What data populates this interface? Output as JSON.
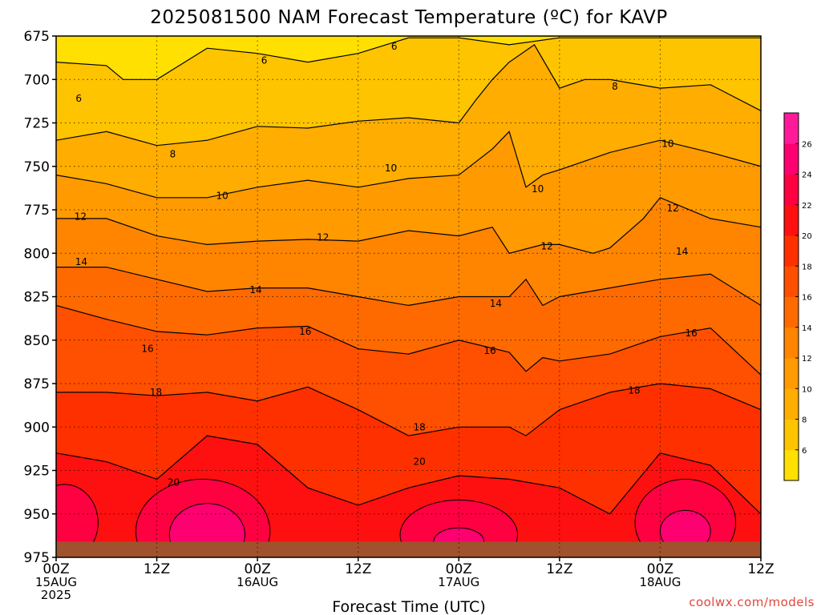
{
  "chart_data": {
    "type": "heatmap",
    "title": "2025081500 NAM Forecast Temperature (ºC) for KAVP",
    "xlabel": "Forecast Time (UTC)",
    "ylabel": "",
    "y_axis": {
      "unit": "hPa",
      "range": [
        975,
        675
      ],
      "inverted": true,
      "ticks": [
        675,
        700,
        725,
        750,
        775,
        800,
        825,
        850,
        875,
        900,
        925,
        950,
        975
      ],
      "tick_labels": [
        "675",
        "700",
        "725",
        "750",
        "775",
        "800",
        "825",
        "850",
        "875",
        "900",
        "925",
        "950",
        "975"
      ]
    },
    "x_axis": {
      "unit": "hours since 2025-08-15 00Z",
      "range": [
        0,
        84
      ],
      "ticks": [
        {
          "h": 0,
          "line1": "00Z",
          "line2": "15AUG",
          "line3": "2025"
        },
        {
          "h": 12,
          "line1": "12Z",
          "line2": "",
          "line3": ""
        },
        {
          "h": 24,
          "line1": "00Z",
          "line2": "16AUG",
          "line3": ""
        },
        {
          "h": 36,
          "line1": "12Z",
          "line2": "",
          "line3": ""
        },
        {
          "h": 48,
          "line1": "00Z",
          "line2": "17AUG",
          "line3": ""
        },
        {
          "h": 60,
          "line1": "12Z",
          "line2": "",
          "line3": ""
        },
        {
          "h": 72,
          "line1": "00Z",
          "line2": "18AUG",
          "line3": ""
        },
        {
          "h": 84,
          "line1": "12Z",
          "line2": "",
          "line3": ""
        }
      ]
    },
    "grid": true,
    "colorbar": {
      "position": "right",
      "levels": [
        4,
        6,
        8,
        10,
        12,
        14,
        16,
        18,
        20,
        22,
        24,
        26,
        28
      ],
      "tick_labels": [
        "6",
        "8",
        "10",
        "12",
        "14",
        "16",
        "18",
        "20",
        "22",
        "24",
        "26"
      ],
      "colors": [
        "#ffe000",
        "#ffc400",
        "#ffad00",
        "#ff9a00",
        "#ff8500",
        "#ff6a00",
        "#ff4f00",
        "#ff3000",
        "#ff1010",
        "#ff0040",
        "#ff0070",
        "#ff1a9a"
      ]
    },
    "contours": [
      {
        "value": 6,
        "p_at": [
          [
            0,
            690
          ],
          [
            6,
            692
          ],
          [
            8,
            700
          ],
          [
            12,
            700
          ],
          [
            18,
            682
          ],
          [
            24,
            685
          ],
          [
            30,
            690
          ],
          [
            36,
            685
          ],
          [
            42,
            676
          ],
          [
            48,
            676
          ],
          [
            54,
            680
          ],
          [
            60,
            676
          ],
          [
            66,
            676
          ],
          [
            72,
            676
          ],
          [
            78,
            676
          ],
          [
            84,
            676
          ]
        ]
      },
      {
        "value": 8,
        "p_at": [
          [
            0,
            735
          ],
          [
            6,
            730
          ],
          [
            12,
            738
          ],
          [
            18,
            735
          ],
          [
            24,
            727
          ],
          [
            30,
            728
          ],
          [
            36,
            724
          ],
          [
            42,
            722
          ],
          [
            48,
            725
          ],
          [
            50,
            712
          ],
          [
            52,
            700
          ],
          [
            54,
            690
          ],
          [
            57,
            680
          ],
          [
            60,
            705
          ],
          [
            63,
            700
          ],
          [
            66,
            700
          ],
          [
            72,
            705
          ],
          [
            78,
            703
          ],
          [
            84,
            718
          ]
        ]
      },
      {
        "value": 10,
        "p_at": [
          [
            0,
            755
          ],
          [
            6,
            760
          ],
          [
            12,
            768
          ],
          [
            18,
            768
          ],
          [
            24,
            762
          ],
          [
            30,
            758
          ],
          [
            36,
            762
          ],
          [
            42,
            757
          ],
          [
            48,
            755
          ],
          [
            52,
            740
          ],
          [
            54,
            730
          ],
          [
            56,
            762
          ],
          [
            58,
            755
          ],
          [
            60,
            752
          ],
          [
            66,
            742
          ],
          [
            72,
            735
          ],
          [
            78,
            742
          ],
          [
            84,
            750
          ]
        ]
      },
      {
        "value": 12,
        "p_at": [
          [
            0,
            780
          ],
          [
            6,
            780
          ],
          [
            12,
            790
          ],
          [
            18,
            795
          ],
          [
            24,
            793
          ],
          [
            30,
            792
          ],
          [
            36,
            793
          ],
          [
            42,
            787
          ],
          [
            48,
            790
          ],
          [
            52,
            785
          ],
          [
            54,
            800
          ],
          [
            58,
            795
          ],
          [
            60,
            795
          ],
          [
            64,
            800
          ],
          [
            66,
            797
          ],
          [
            70,
            780
          ],
          [
            72,
            768
          ],
          [
            78,
            780
          ],
          [
            84,
            785
          ]
        ]
      },
      {
        "value": 14,
        "p_at": [
          [
            0,
            808
          ],
          [
            6,
            808
          ],
          [
            12,
            815
          ],
          [
            18,
            822
          ],
          [
            24,
            820
          ],
          [
            30,
            820
          ],
          [
            36,
            825
          ],
          [
            42,
            830
          ],
          [
            48,
            825
          ],
          [
            54,
            825
          ],
          [
            56,
            815
          ],
          [
            58,
            830
          ],
          [
            60,
            825
          ],
          [
            66,
            820
          ],
          [
            72,
            815
          ],
          [
            78,
            812
          ],
          [
            84,
            830
          ]
        ]
      },
      {
        "value": 16,
        "p_at": [
          [
            0,
            830
          ],
          [
            6,
            838
          ],
          [
            12,
            845
          ],
          [
            18,
            847
          ],
          [
            24,
            843
          ],
          [
            30,
            842
          ],
          [
            36,
            855
          ],
          [
            42,
            858
          ],
          [
            48,
            850
          ],
          [
            54,
            857
          ],
          [
            56,
            868
          ],
          [
            58,
            860
          ],
          [
            60,
            862
          ],
          [
            66,
            858
          ],
          [
            72,
            848
          ],
          [
            78,
            843
          ],
          [
            84,
            870
          ]
        ]
      },
      {
        "value": 18,
        "p_at": [
          [
            0,
            880
          ],
          [
            6,
            880
          ],
          [
            12,
            882
          ],
          [
            18,
            880
          ],
          [
            24,
            885
          ],
          [
            30,
            877
          ],
          [
            36,
            890
          ],
          [
            42,
            905
          ],
          [
            48,
            900
          ],
          [
            54,
            900
          ],
          [
            56,
            905
          ],
          [
            60,
            890
          ],
          [
            66,
            880
          ],
          [
            72,
            875
          ],
          [
            78,
            878
          ],
          [
            84,
            890
          ]
        ]
      },
      {
        "value": 20,
        "p_at": [
          [
            0,
            915
          ],
          [
            6,
            920
          ],
          [
            12,
            930
          ],
          [
            18,
            905
          ],
          [
            24,
            910
          ],
          [
            30,
            935
          ],
          [
            36,
            945
          ],
          [
            42,
            935
          ],
          [
            48,
            928
          ],
          [
            54,
            930
          ],
          [
            60,
            935
          ],
          [
            66,
            950
          ],
          [
            72,
            915
          ],
          [
            78,
            922
          ],
          [
            84,
            950
          ]
        ]
      }
    ],
    "contour_labels": [
      {
        "h": 2.7,
        "p": 711,
        "text": "6"
      },
      {
        "h": 24.8,
        "p": 689,
        "text": "6"
      },
      {
        "h": 40.3,
        "p": 681,
        "text": "6"
      },
      {
        "h": 13.9,
        "p": 743,
        "text": "8"
      },
      {
        "h": 66.6,
        "p": 704,
        "text": "8"
      },
      {
        "h": 19.8,
        "p": 767,
        "text": "10"
      },
      {
        "h": 39.9,
        "p": 751,
        "text": "10"
      },
      {
        "h": 57.4,
        "p": 763,
        "text": "10"
      },
      {
        "h": 72.9,
        "p": 737,
        "text": "10"
      },
      {
        "h": 2.9,
        "p": 779,
        "text": "12"
      },
      {
        "h": 31.8,
        "p": 791,
        "text": "12"
      },
      {
        "h": 58.5,
        "p": 796,
        "text": "12"
      },
      {
        "h": 73.5,
        "p": 774,
        "text": "12"
      },
      {
        "h": 3.0,
        "p": 805,
        "text": "14"
      },
      {
        "h": 23.8,
        "p": 821,
        "text": "14"
      },
      {
        "h": 52.4,
        "p": 829,
        "text": "14"
      },
      {
        "h": 74.6,
        "p": 799,
        "text": "14"
      },
      {
        "h": 10.9,
        "p": 855,
        "text": "16"
      },
      {
        "h": 29.7,
        "p": 845,
        "text": "16"
      },
      {
        "h": 51.7,
        "p": 856,
        "text": "16"
      },
      {
        "h": 75.7,
        "p": 846,
        "text": "16"
      },
      {
        "h": 11.9,
        "p": 880,
        "text": "18"
      },
      {
        "h": 43.3,
        "p": 900,
        "text": "18"
      },
      {
        "h": 68.9,
        "p": 879,
        "text": "18"
      },
      {
        "h": 14.0,
        "p": 932,
        "text": "20"
      },
      {
        "h": 43.3,
        "p": 920,
        "text": "20"
      }
    ],
    "ground": {
      "color": "#a0522d",
      "p_top": 966
    },
    "credit": "coolwx.com/models"
  }
}
